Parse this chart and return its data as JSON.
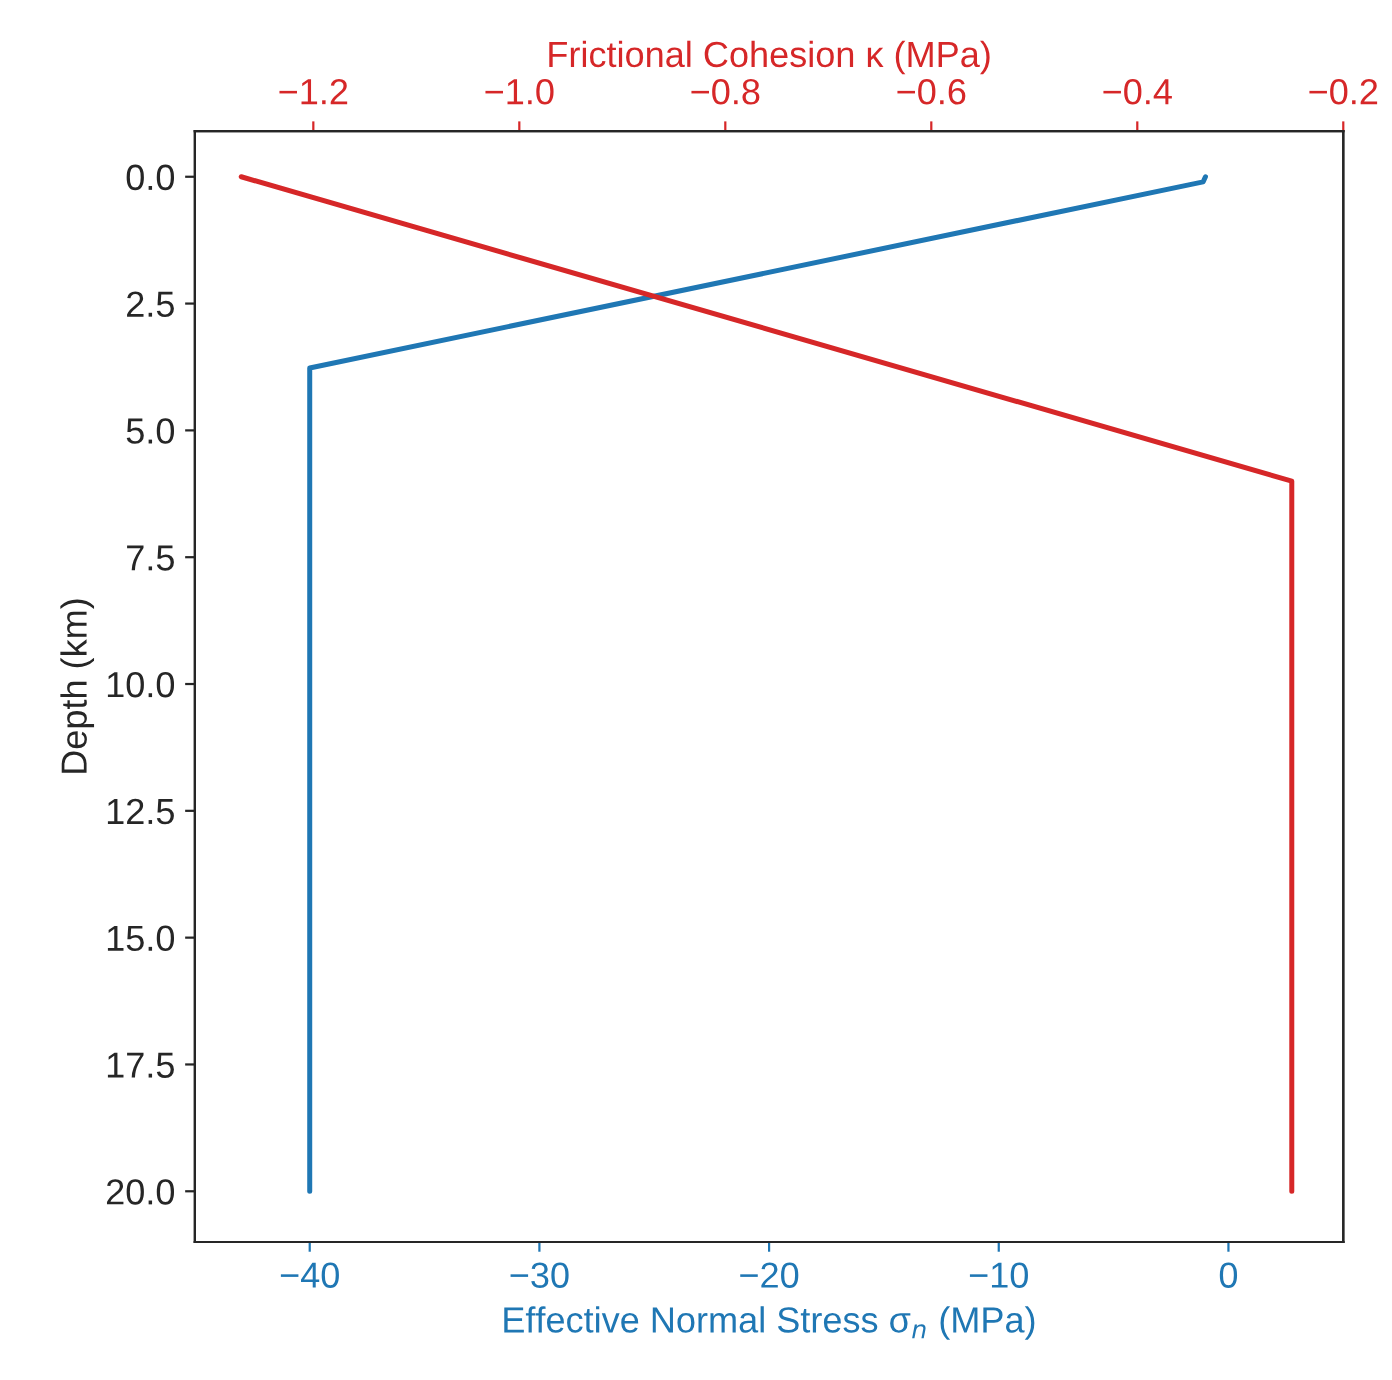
{
  "chart_data": {
    "type": "line",
    "xlabel": "Effective Normal Stress σ$_{n}$ (MPa)",
    "x2label": "Frictional Cohesion κ (MPa)",
    "ylabel": "Depth (km)",
    "series": [
      {
        "color": "#1f77b4",
        "x": [
          -1.0,
          -1.1,
          -40,
          -40
        ],
        "values": [
          0.0,
          0.1,
          3.77,
          20.0
        ]
      },
      {
        "color": "#d62728",
        "axis": "x2",
        "x": [
          -1.27,
          -0.25,
          -0.25
        ],
        "values": [
          0.0,
          6.0,
          20.0
        ]
      }
    ],
    "xlim": [
      -45,
      5
    ],
    "xticks": [
      {
        "value": -40,
        "label": "−40"
      },
      {
        "value": -30,
        "label": "−30"
      },
      {
        "value": -20,
        "label": "−20"
      },
      {
        "value": -10,
        "label": "−10"
      },
      0
    ],
    "x2lim": [
      -1.315,
      -0.2
    ],
    "x2ticks": [
      {
        "value": -1.2,
        "label": "−1.2"
      },
      {
        "value": -1.0,
        "label": "−1.0"
      },
      {
        "value": -0.8,
        "label": "−0.8"
      },
      {
        "value": -0.6,
        "label": "−0.6"
      },
      {
        "value": -0.4,
        "label": "−0.4"
      },
      {
        "value": -0.2,
        "label": "−0.2"
      }
    ],
    "ylim": [
      21.0,
      -0.9
    ],
    "yticks": [
      {
        "value": 0,
        "label": "0.0"
      },
      2.5,
      {
        "value": 5,
        "label": "5.0"
      },
      7.5,
      {
        "value": 10,
        "label": "10.0"
      },
      12.5,
      {
        "value": 15,
        "label": "15.0"
      },
      17.5,
      {
        "value": 20,
        "label": "20.0"
      }
    ],
    "grid": false
  }
}
